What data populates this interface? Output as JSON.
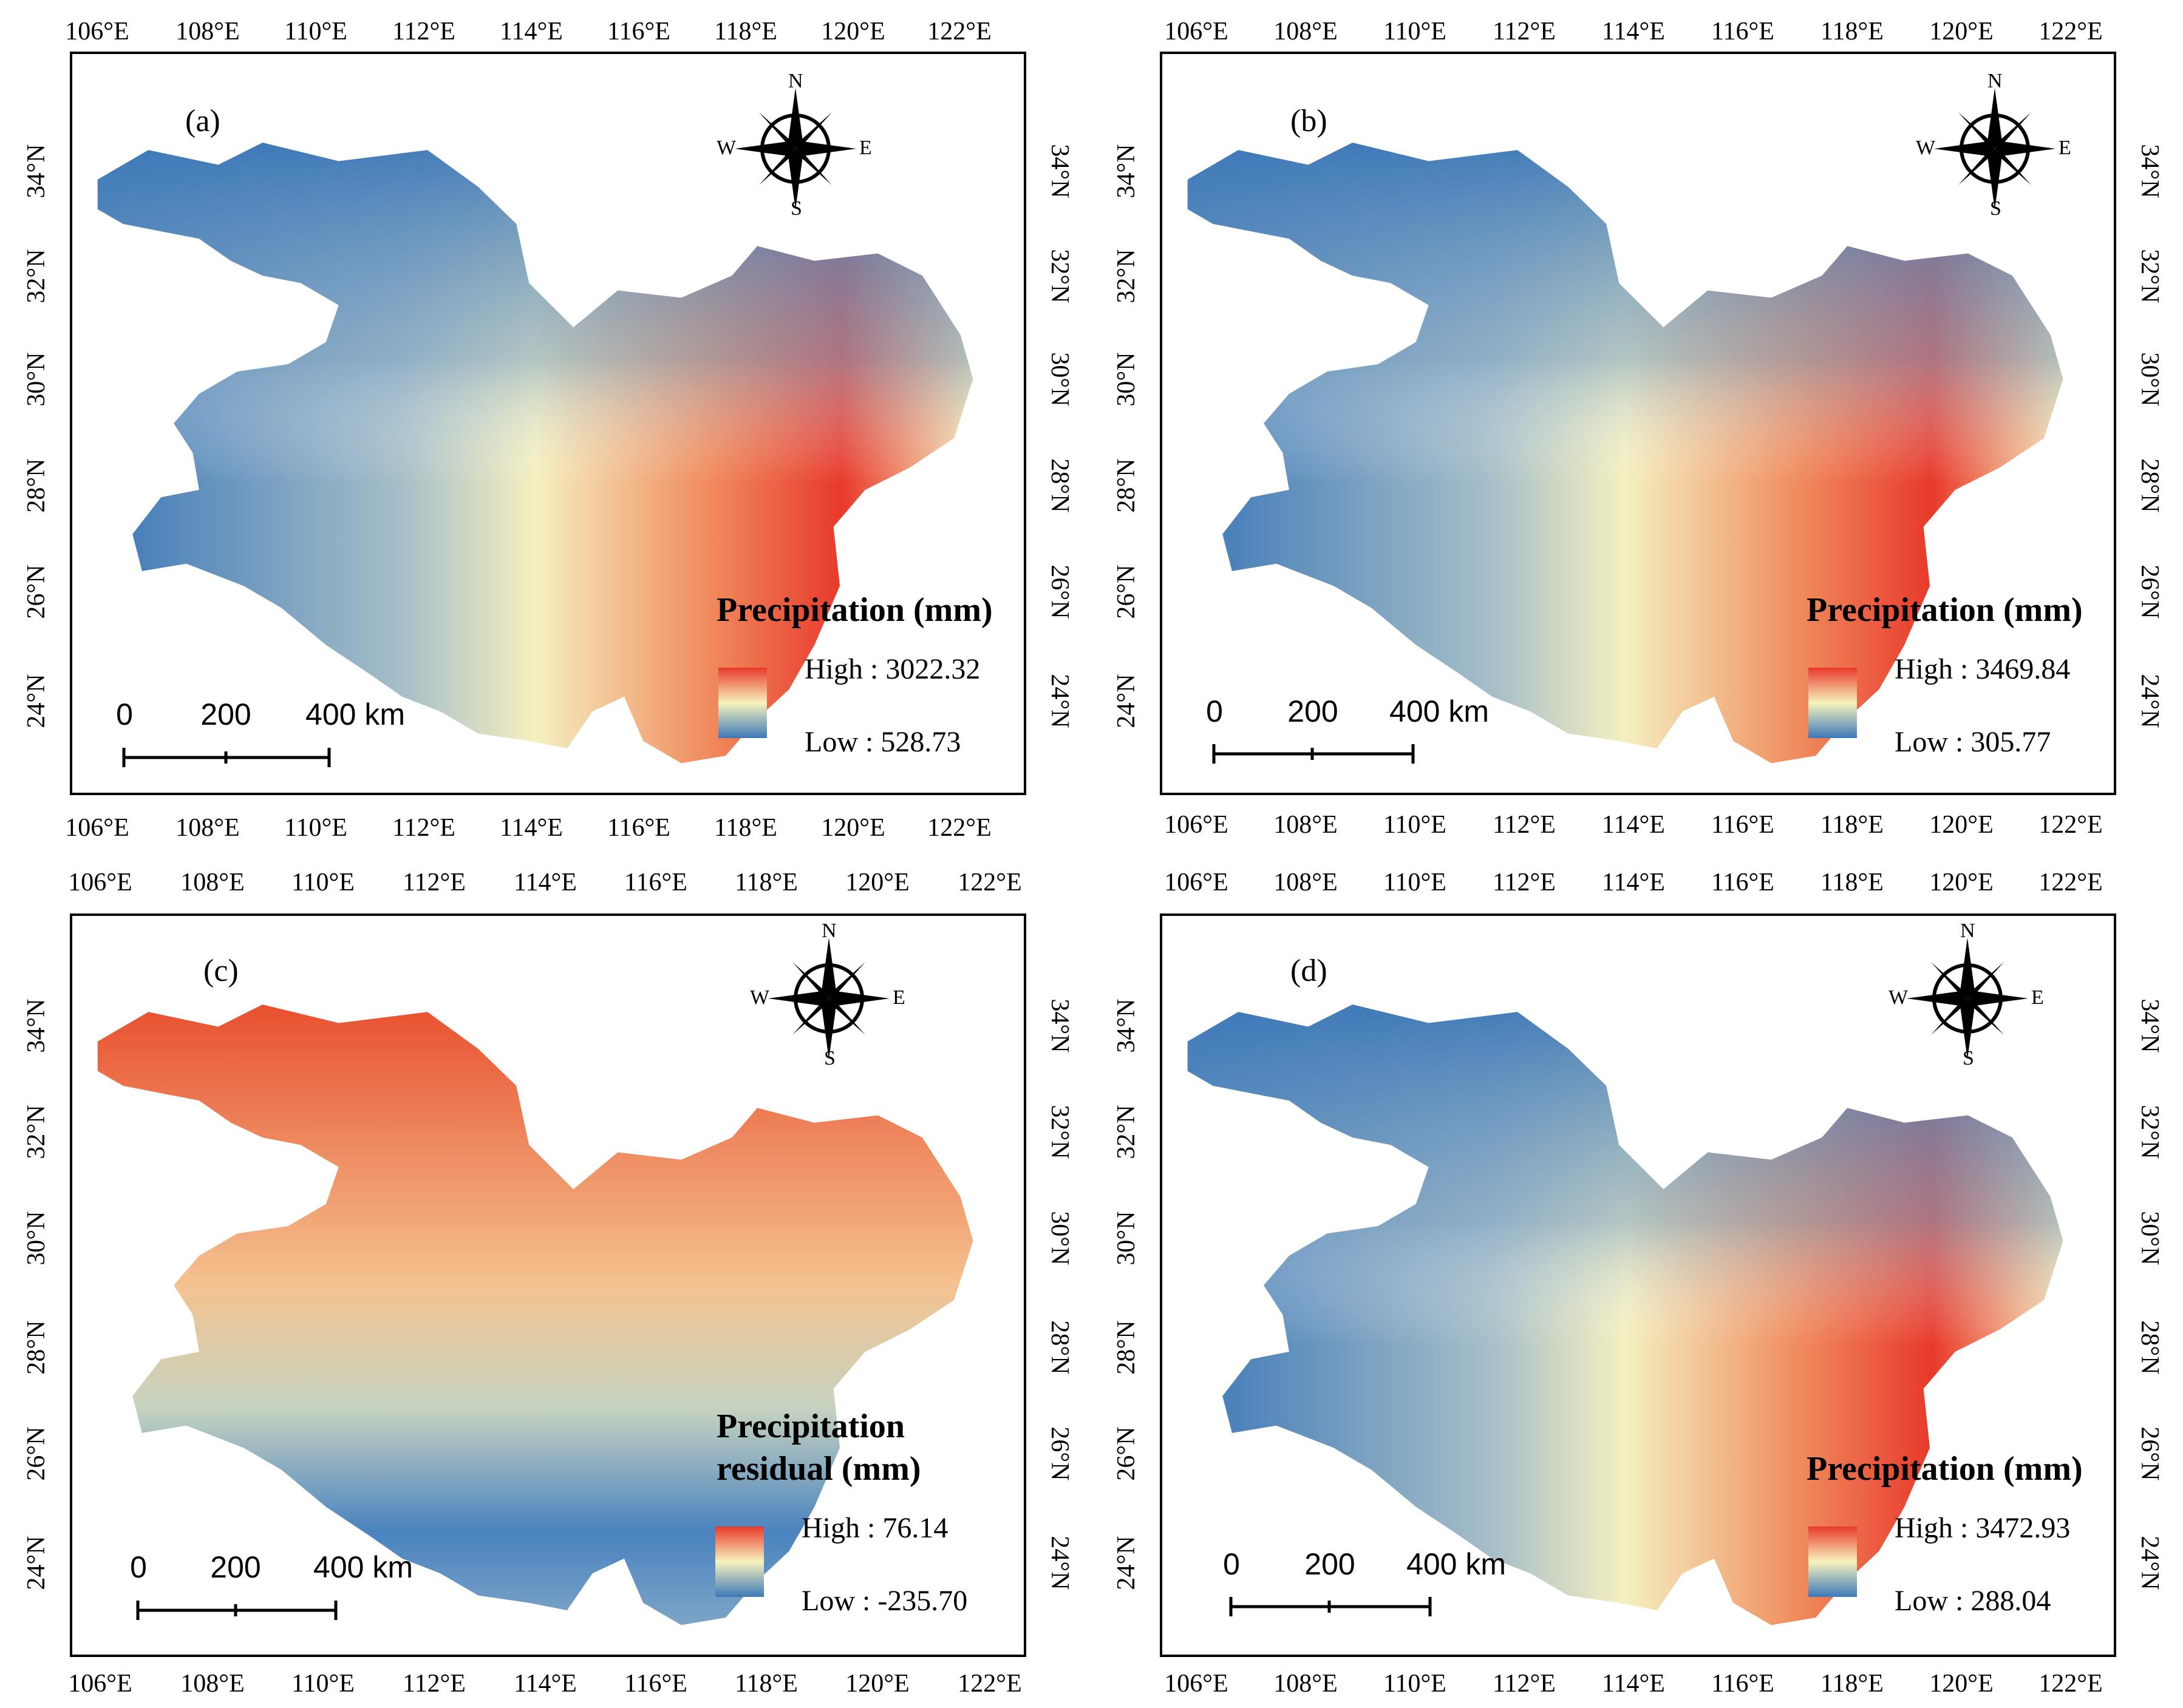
{
  "map": {
    "lon_ticks": [
      "106°E",
      "108°E",
      "110°E",
      "112°E",
      "114°E",
      "116°E",
      "118°E",
      "120°E",
      "122°E"
    ],
    "lat_ticks": [
      "24°N",
      "26°N",
      "28°N",
      "30°N",
      "32°N",
      "34°N"
    ],
    "compass": {
      "n": "N",
      "s": "S",
      "e": "E",
      "w": "W"
    },
    "scale_bar": {
      "zero": "0",
      "mid": "200",
      "end": "400 km"
    },
    "panels": [
      {
        "label": "(a)",
        "legend_title": "Precipitation (mm)",
        "legend_title_line2": "",
        "high": "High : 3022.32",
        "low": "Low : 528.73"
      },
      {
        "label": "(b)",
        "legend_title": "Precipitation (mm)",
        "legend_title_line2": "",
        "high": "High : 3469.84",
        "low": "Low : 305.77"
      },
      {
        "label": "(c)",
        "legend_title": "Precipitation",
        "legend_title_line2": "residual (mm)",
        "high": "High : 76.14",
        "low": "Low : -235.70"
      },
      {
        "label": "(d)",
        "legend_title": "Precipitation (mm)",
        "legend_title_line2": "",
        "high": "High : 3472.93",
        "low": "Low : 288.04"
      }
    ],
    "colors": {
      "high": "#e8392b",
      "mid": "#f7f3bd",
      "low": "#3c78b8"
    }
  }
}
